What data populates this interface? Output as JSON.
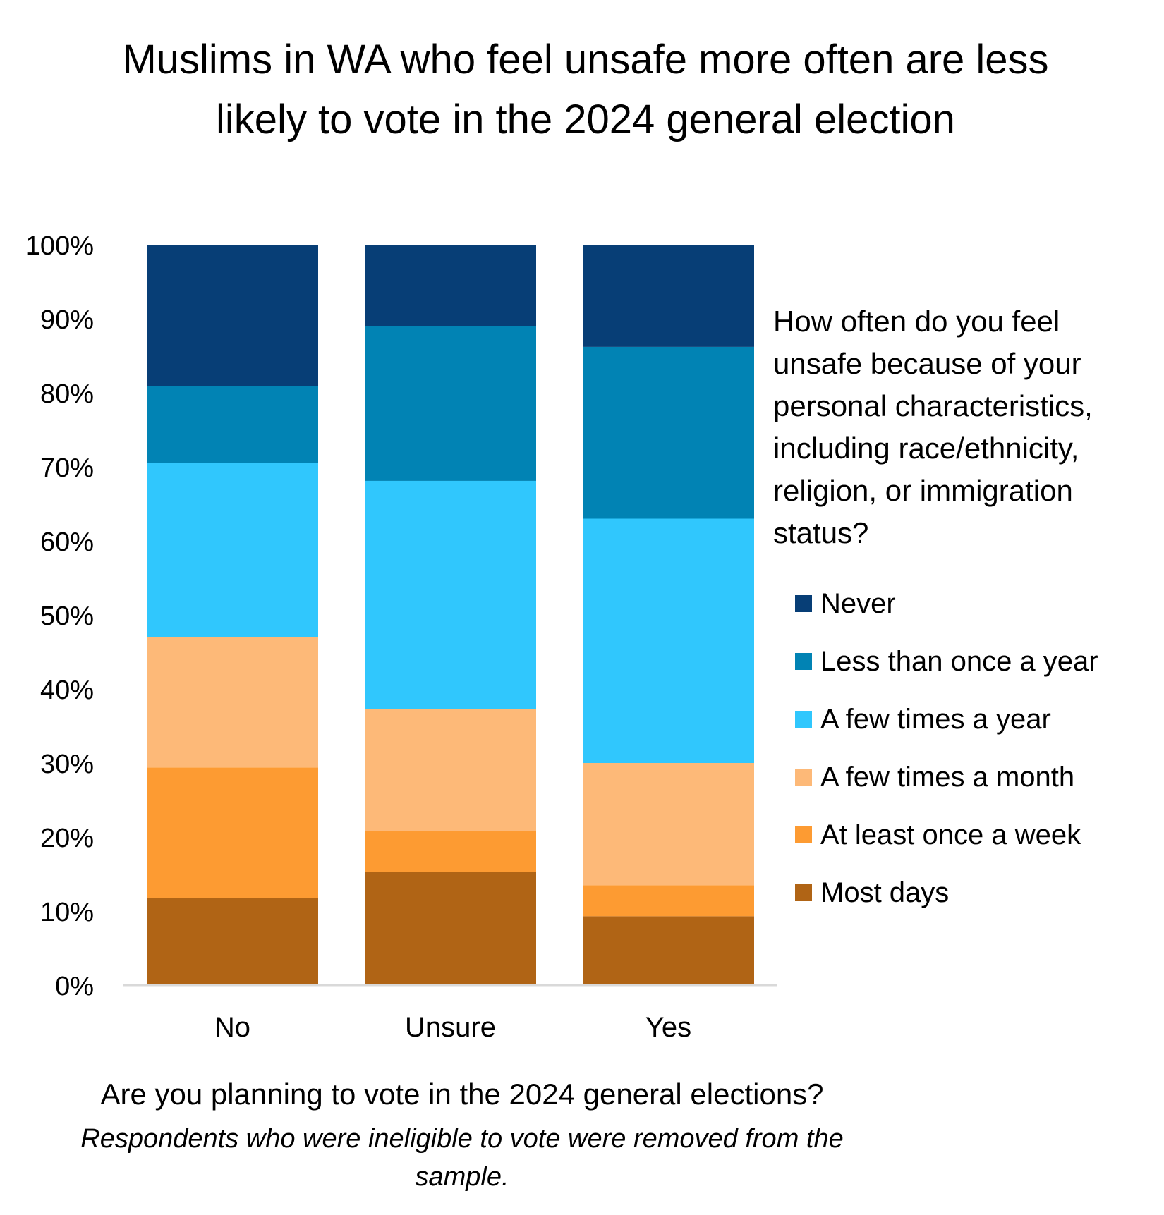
{
  "chart_data": {
    "type": "bar",
    "stacked": true,
    "title": "Muslims in WA who feel unsafe more often are less likely to vote in the 2024 general election",
    "xlabel": "Are you planning to vote in the 2024 general elections?",
    "note": "Respondents who were ineligible to vote were removed from the sample.",
    "ylabel": "",
    "ylim": [
      0,
      100
    ],
    "yticks": [
      "0%",
      "10%",
      "20%",
      "30%",
      "40%",
      "50%",
      "60%",
      "70%",
      "80%",
      "90%",
      "100%"
    ],
    "grid": false,
    "categories": [
      "No",
      "Unsure",
      "Yes"
    ],
    "legend_title": "How often do you feel unsafe because of your personal characteristics, including race/ethnicity, religion, or immigration status?",
    "legend_position": "right",
    "series": [
      {
        "name": "Most days",
        "color": "#b06415",
        "values": [
          11.8,
          15.3,
          9.3
        ]
      },
      {
        "name": "At least once a week",
        "color": "#fd9b32",
        "values": [
          17.6,
          5.5,
          4.2
        ]
      },
      {
        "name": "A few times a month",
        "color": "#fdb978",
        "values": [
          17.6,
          16.5,
          16.5
        ]
      },
      {
        "name": "A few times a year",
        "color": "#30c7fd",
        "values": [
          23.5,
          30.8,
          33.0
        ]
      },
      {
        "name": "Less than once a year",
        "color": "#0183b4",
        "values": [
          10.4,
          20.9,
          23.2
        ]
      },
      {
        "name": "Never",
        "color": "#073e76",
        "values": [
          19.1,
          11.0,
          13.8
        ]
      }
    ]
  }
}
